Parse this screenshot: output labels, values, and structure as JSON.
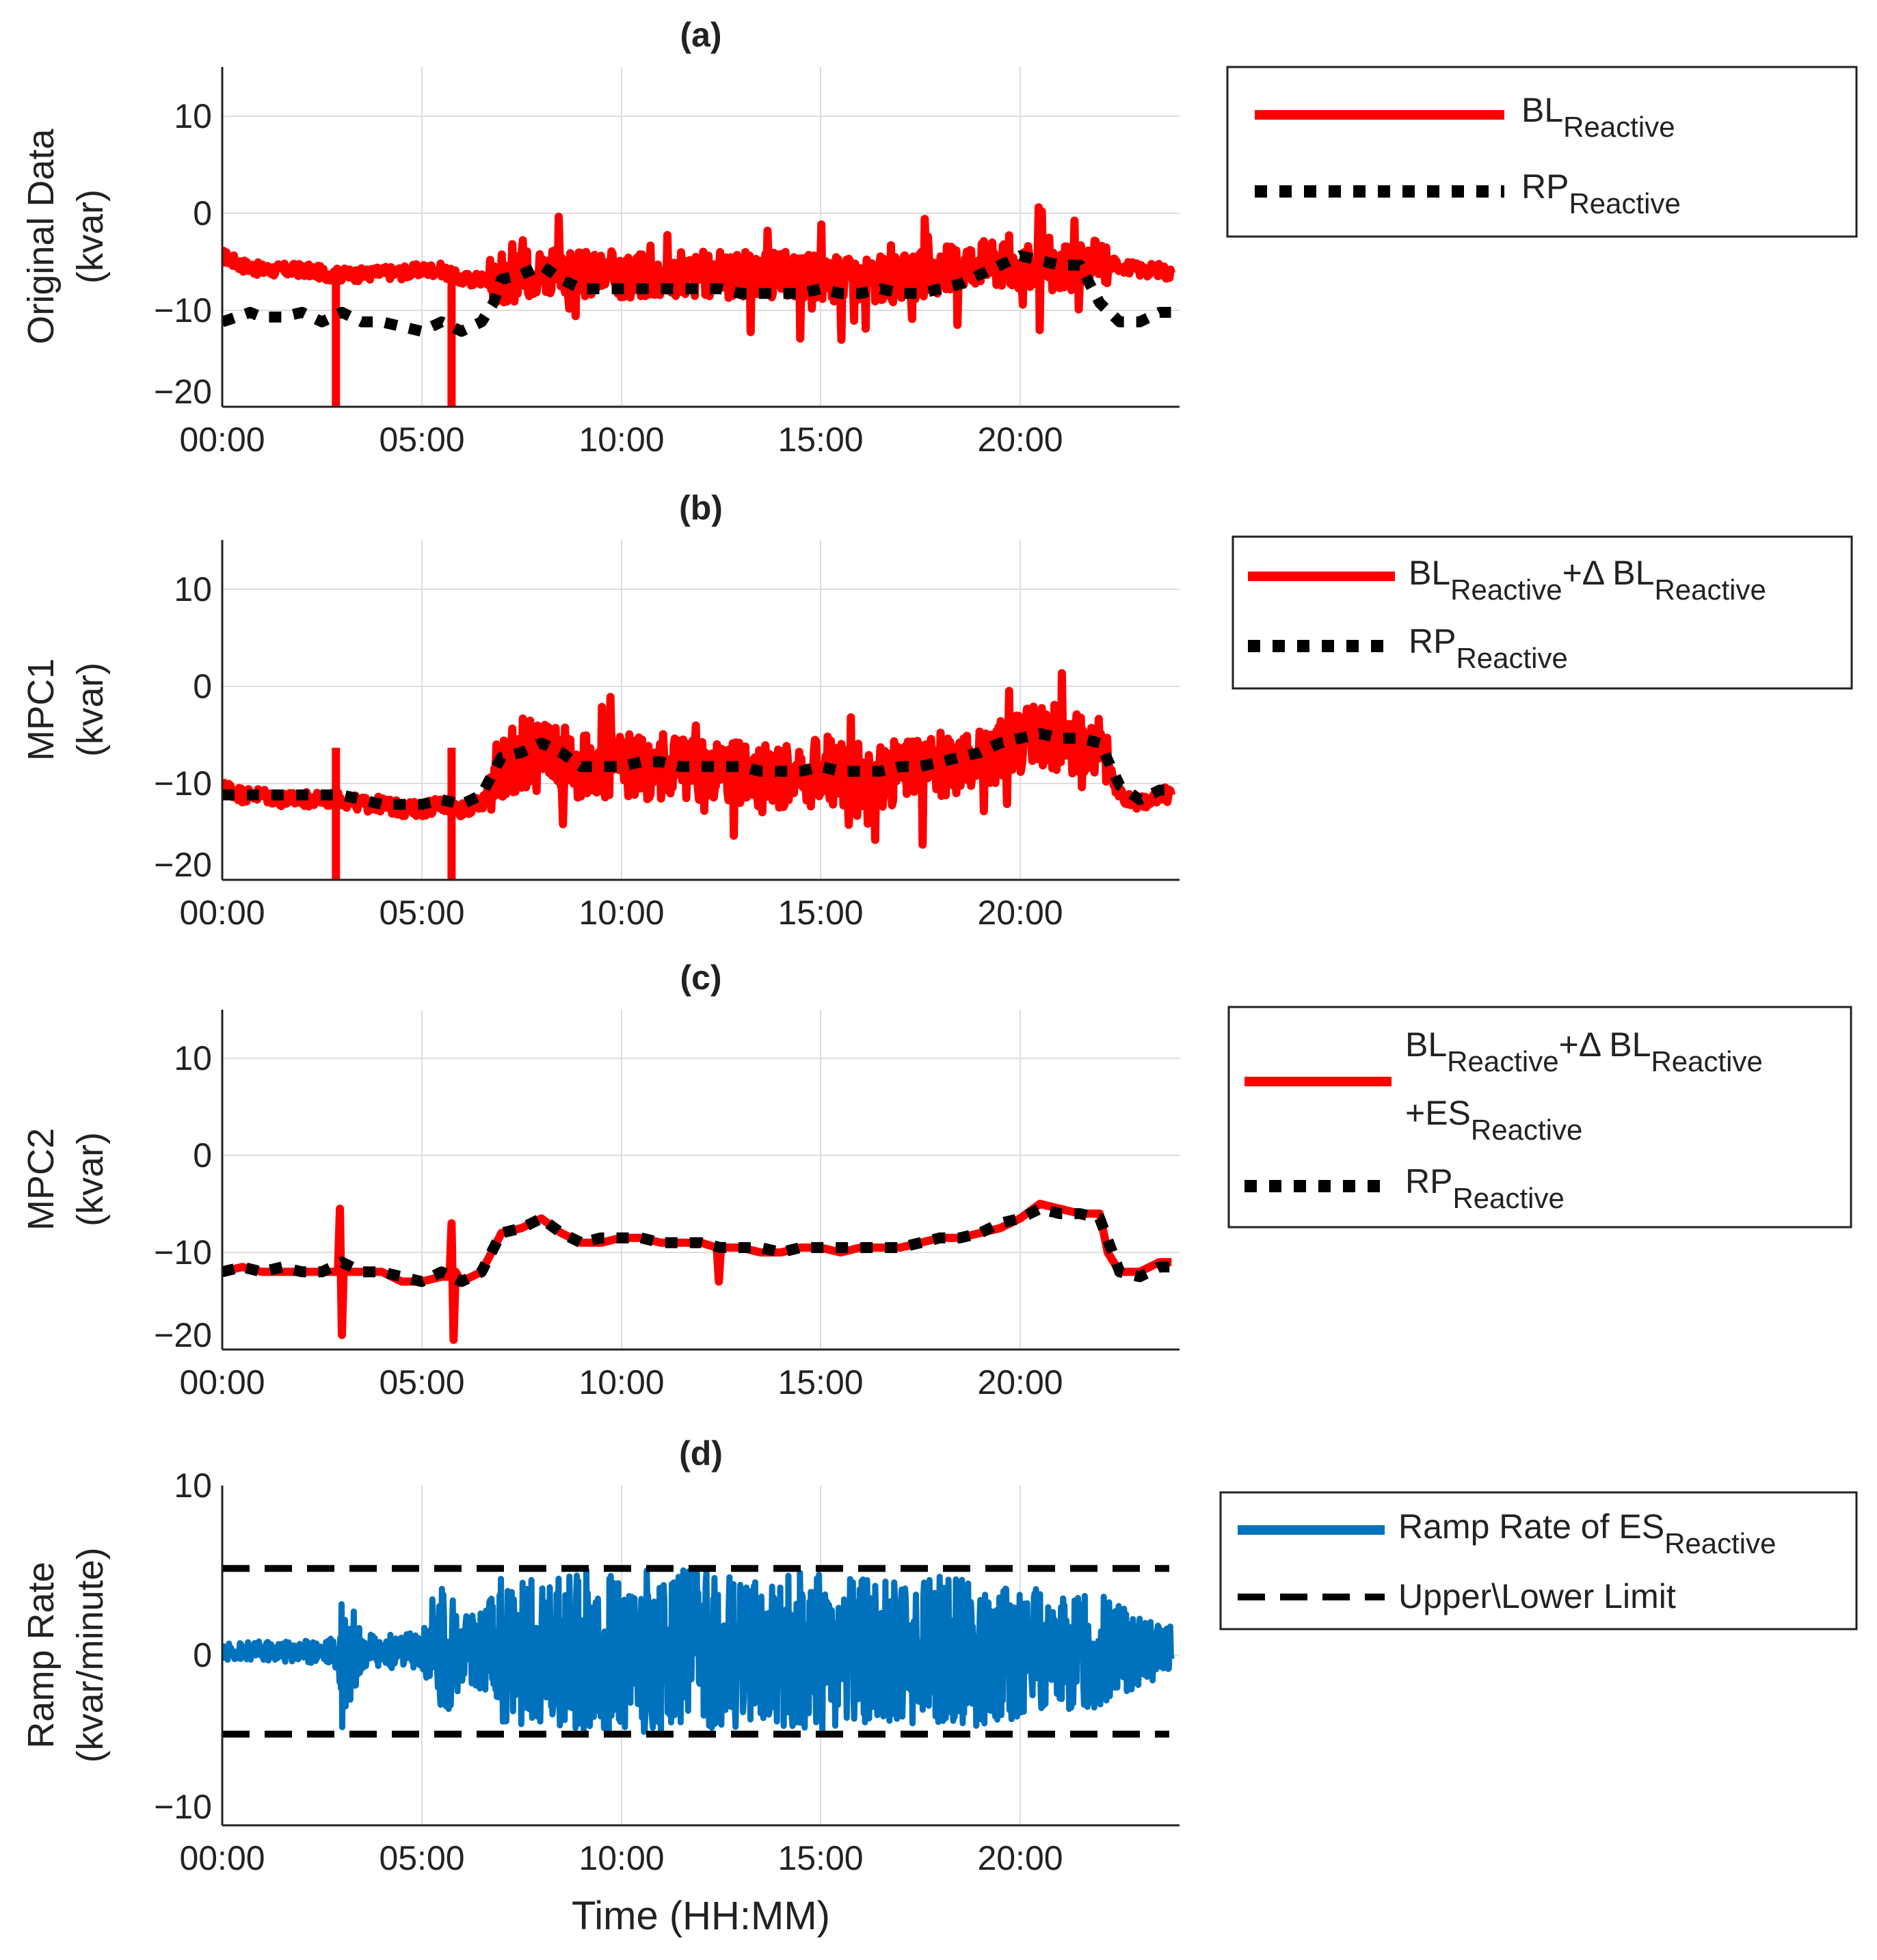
{
  "x_axis": {
    "ticks": [
      "00:00",
      "05:00",
      "10:00",
      "15:00",
      "20:00"
    ],
    "tick_hours": [
      0,
      5,
      10,
      15,
      20
    ],
    "range_hours": [
      0,
      24
    ],
    "xlabel": "Time (HH:MM)"
  },
  "colors": {
    "red": "#ff0000",
    "black": "#000000",
    "blue": "#0072bd",
    "grid": "#dddddd",
    "axis": "#222222"
  },
  "chart_data": [
    {
      "type": "line",
      "title": "(a)",
      "ylabel_lines": [
        "Original Data",
        "(kvar)"
      ],
      "ylim": [
        -21,
        15
      ],
      "yticks": [
        10,
        0,
        -10,
        -20
      ],
      "ytick_labels": [
        "10",
        "0",
        "−10",
        "−20"
      ],
      "legend": {
        "position": "right",
        "entries": [
          {
            "base": "BL",
            "sub": "Reactive",
            "style": "solid-red"
          },
          {
            "base": "RP",
            "sub": "Reactive",
            "style": "dotted-black"
          }
        ]
      },
      "series": [
        {
          "name": "BL Reactive",
          "color": "#ff0000",
          "x": [
            0,
            0.5,
            1,
            1.5,
            2,
            2.5,
            2.8,
            3,
            3.5,
            4,
            4.5,
            5,
            5.5,
            5.7,
            6,
            6.5,
            7,
            7.5,
            8,
            8.5,
            9,
            9.5,
            10,
            10.5,
            11,
            11.5,
            12,
            12.5,
            13,
            13.5,
            14,
            14.5,
            15,
            15.5,
            16,
            16.5,
            17,
            17.5,
            18,
            18.5,
            19,
            19.5,
            20,
            20.5,
            21,
            21.5,
            22,
            22.5,
            23,
            23.5,
            23.8
          ],
          "y": [
            -5,
            -6,
            -6.5,
            -6.5,
            -6.5,
            -6.8,
            -7,
            -7,
            -7,
            -6.8,
            -6.8,
            -6.5,
            -6.5,
            -7,
            -7.5,
            -7.5,
            -7.5,
            -7,
            -6.5,
            -7,
            -7,
            -7,
            -7,
            -7,
            -7,
            -7,
            -7,
            -7,
            -7,
            -7,
            -7,
            -7,
            -7.5,
            -7.5,
            -7.5,
            -7.5,
            -7.5,
            -7,
            -6.5,
            -6,
            -5.5,
            -6,
            -6,
            -6.5,
            -6.5,
            -6.5,
            -5.5,
            -6,
            -6.5,
            -6.5,
            -7
          ]
        },
        {
          "name": "RP Reactive",
          "color": "#000000",
          "x": [
            0,
            0.7,
            1,
            1.5,
            2,
            2.5,
            3,
            3.5,
            4,
            4.5,
            5,
            5.5,
            6,
            6.5,
            6.8,
            7,
            7.5,
            8,
            8.5,
            9,
            9.5,
            10,
            10.5,
            11,
            11.5,
            12,
            12.5,
            13,
            13.5,
            14,
            14.5,
            15,
            15.5,
            16,
            16.5,
            17,
            17.5,
            18,
            18.5,
            19,
            19.5,
            20,
            20.5,
            21,
            21.5,
            22,
            22.5,
            23,
            23.5,
            23.8
          ],
          "y": [
            -12,
            -11,
            -11.5,
            -11.5,
            -11,
            -12,
            -11,
            -12,
            -12,
            -12.5,
            -13,
            -12,
            -13,
            -12,
            -10,
            -7.5,
            -7,
            -6,
            -7.5,
            -8.5,
            -8.5,
            -8.5,
            -8.5,
            -8.5,
            -8.5,
            -8.5,
            -8.5,
            -9,
            -9,
            -9,
            -9,
            -8.5,
            -9,
            -9,
            -8.5,
            -9,
            -9,
            -8.5,
            -8,
            -7,
            -6,
            -5,
            -5.5,
            -6,
            -6,
            -10,
            -12,
            -12,
            -11,
            -11
          ]
        }
      ]
    },
    {
      "type": "line",
      "title": "(b)",
      "ylabel_lines": [
        "MPC1",
        "(kvar)"
      ],
      "ylim": [
        -21,
        15
      ],
      "yticks": [
        10,
        0,
        -10,
        -20
      ],
      "ytick_labels": [
        "10",
        "0",
        "−10",
        "−20"
      ],
      "legend": {
        "position": "right",
        "entries": [
          {
            "base": "BL",
            "sub": "Reactive",
            "base2": "+Δ BL",
            "sub2": "Reactive",
            "style": "solid-red"
          },
          {
            "base": "RP",
            "sub": "Reactive",
            "style": "dotted-black"
          }
        ]
      },
      "series": [
        {
          "name": "BL Reactive + Δ BL Reactive",
          "color": "#ff0000",
          "x": [
            0,
            0.5,
            1,
            1.5,
            2,
            2.5,
            3,
            3.5,
            4,
            4.5,
            5,
            5.5,
            6,
            6.5,
            7,
            7.5,
            8,
            8.5,
            9,
            9.5,
            10,
            10.5,
            11,
            11.5,
            12,
            12.5,
            13,
            13.5,
            14,
            14.5,
            15,
            15.5,
            16,
            16.5,
            17,
            17.5,
            18,
            18.5,
            19,
            19.5,
            20,
            20.5,
            21,
            21.5,
            22,
            22.5,
            23,
            23.5,
            23.8
          ],
          "y": [
            -11,
            -12,
            -12,
            -12.5,
            -12.5,
            -12.5,
            -12.5,
            -13,
            -13,
            -13.5,
            -13.5,
            -13,
            -13.5,
            -13,
            -9,
            -8,
            -7,
            -8,
            -9,
            -9,
            -9,
            -9,
            -9,
            -9,
            -9.5,
            -9.5,
            -9.5,
            -10,
            -10,
            -10,
            -9.5,
            -10,
            -10,
            -10,
            -9.5,
            -9.5,
            -9,
            -8.5,
            -8,
            -7,
            -6.5,
            -5.5,
            -6,
            -6.5,
            -7,
            -12,
            -13,
            -12,
            -12
          ]
        },
        {
          "name": "RP Reactive",
          "color": "#000000",
          "x": [
            0,
            0.5,
            1,
            1.5,
            2,
            2.5,
            3,
            3.5,
            4,
            4.5,
            5,
            5.5,
            6,
            6.5,
            7,
            7.5,
            8,
            8.5,
            9,
            9.5,
            10,
            10.5,
            11,
            11.5,
            12,
            12.5,
            13,
            13.5,
            14,
            14.5,
            15,
            15.5,
            16,
            16.5,
            17,
            17.5,
            18,
            18.5,
            19,
            19.5,
            20,
            20.5,
            21,
            21.5,
            22,
            22.5,
            23,
            23.5,
            23.8
          ],
          "y": [
            -12,
            -12,
            -12,
            -12,
            -12,
            -12,
            -12,
            -12.5,
            -13,
            -13,
            -13,
            -12.5,
            -13,
            -12,
            -8,
            -7.5,
            -6.5,
            -7.5,
            -9,
            -9,
            -9,
            -8.5,
            -8.5,
            -9,
            -9,
            -9,
            -9,
            -9.5,
            -9.5,
            -9.5,
            -9,
            -9.5,
            -9.5,
            -9.5,
            -9,
            -9,
            -8.5,
            -8,
            -7.5,
            -6.5,
            -6,
            -5.5,
            -6,
            -6,
            -6.5,
            -11,
            -12.5,
            -11.5,
            -11.5
          ]
        }
      ]
    },
    {
      "type": "line",
      "title": "(c)",
      "ylabel_lines": [
        "MPC2",
        "(kvar)"
      ],
      "ylim": [
        -20,
        15
      ],
      "yticks": [
        10,
        0,
        -10,
        -20
      ],
      "ytick_labels": [
        "10",
        "0",
        "−10",
        "−20"
      ],
      "legend": {
        "position": "right",
        "entries": [
          {
            "base": "BL",
            "sub": "Reactive",
            "base2": "+Δ BL",
            "sub2": "Reactive",
            "line2_base": "+ES",
            "line2_sub": "Reactive",
            "style": "solid-red"
          },
          {
            "base": "RP",
            "sub": "Reactive",
            "style": "dotted-black"
          }
        ]
      },
      "series": [
        {
          "name": "BL Reactive + Δ BL Reactive + ES Reactive",
          "color": "#ff0000",
          "x": [
            0,
            0.5,
            1,
            1.5,
            2,
            2.5,
            2.9,
            2.95,
            3,
            3.05,
            3.1,
            3.5,
            4,
            4.5,
            5,
            5.5,
            5.7,
            5.75,
            5.8,
            5.85,
            6,
            6.5,
            7,
            7.5,
            8,
            8.5,
            9,
            9.5,
            10,
            10.5,
            11,
            11.5,
            12,
            12.4,
            12.45,
            12.5,
            13,
            13.5,
            14,
            14.5,
            15,
            15.5,
            16,
            16.5,
            17,
            17.5,
            18,
            18.5,
            19,
            19.5,
            20,
            20.5,
            21,
            21.5,
            22,
            22.2,
            22.5,
            23,
            23.5,
            23.8
          ],
          "y": [
            -12,
            -11.5,
            -12,
            -12,
            -12,
            -12,
            -12,
            -5.5,
            -18.5,
            -11,
            -12,
            -12,
            -12,
            -13,
            -13,
            -12.5,
            -12.5,
            -7,
            -19,
            -12,
            -13,
            -12,
            -8,
            -7.5,
            -6.5,
            -8,
            -9,
            -9,
            -8.5,
            -8.5,
            -9,
            -9,
            -9,
            -9.5,
            -13,
            -9.5,
            -9.5,
            -10,
            -10,
            -9.5,
            -9.5,
            -10,
            -9.5,
            -9.5,
            -9.5,
            -9,
            -8.5,
            -8.5,
            -8,
            -7.5,
            -6.5,
            -5,
            -5.5,
            -6,
            -6,
            -10,
            -12,
            -12,
            -11,
            -11
          ]
        },
        {
          "name": "RP Reactive",
          "color": "#000000",
          "x": [
            0,
            0.5,
            1,
            1.5,
            2,
            2.5,
            3,
            3.5,
            4,
            4.5,
            5,
            5.5,
            6,
            6.5,
            7,
            7.5,
            8,
            8.5,
            9,
            9.5,
            10,
            10.5,
            11,
            11.5,
            12,
            12.5,
            13,
            13.5,
            14,
            14.5,
            15,
            15.5,
            16,
            16.5,
            17,
            17.5,
            18,
            18.5,
            19,
            19.5,
            20,
            20.5,
            21,
            21.5,
            22,
            22.5,
            23,
            23.5,
            23.8
          ],
          "y": [
            -12,
            -11.5,
            -12,
            -11.5,
            -12,
            -12,
            -11,
            -12,
            -12,
            -12.5,
            -13,
            -12,
            -13,
            -12,
            -8,
            -7.5,
            -6.5,
            -8,
            -9,
            -8.5,
            -8.5,
            -8.5,
            -9,
            -9,
            -9,
            -9.5,
            -9.5,
            -9.5,
            -10,
            -9.5,
            -9.5,
            -9.5,
            -9.5,
            -9.5,
            -9.5,
            -9,
            -8.5,
            -8.5,
            -8,
            -7,
            -6.5,
            -5.5,
            -6,
            -6,
            -6.5,
            -12,
            -12.5,
            -11.5,
            -11.5
          ]
        }
      ]
    },
    {
      "type": "line",
      "title": "(d)",
      "ylabel_lines": [
        "Ramp Rate",
        "(kvar/minute)"
      ],
      "ylim": [
        -10.5,
        10
      ],
      "yticks": [
        10,
        0,
        -10
      ],
      "ytick_labels": [
        "10",
        "0",
        "−10"
      ],
      "legend": {
        "position": "right",
        "entries": [
          {
            "text": "Ramp Rate of ES",
            "sub": "Reactive",
            "style": "solid-blue"
          },
          {
            "text": "Upper\\Lower Limit",
            "style": "dashed-black"
          }
        ]
      },
      "upper_limit": 5,
      "lower_limit": -5,
      "series": [
        {
          "name": "Ramp Rate of ES Reactive",
          "color": "#0072bd",
          "envelope": {
            "x": [
              0,
              1,
              2,
              2.8,
              3,
              3.5,
              4,
              5,
              5.5,
              6,
              6.5,
              7,
              8,
              9,
              10,
              11,
              12,
              13,
              14,
              15,
              16,
              17,
              18,
              19,
              20,
              21,
              22,
              23,
              23.8
            ],
            "amplitude": [
              0.5,
              0.6,
              0.7,
              0.8,
              4.8,
              1,
              1,
              1.2,
              4.8,
              2,
              2.5,
              4.5,
              4.5,
              5,
              5,
              5,
              5,
              4.5,
              4.5,
              5,
              4.8,
              4.5,
              4.5,
              4.5,
              4,
              3.5,
              3.5,
              2,
              1.5
            ]
          }
        }
      ]
    }
  ]
}
